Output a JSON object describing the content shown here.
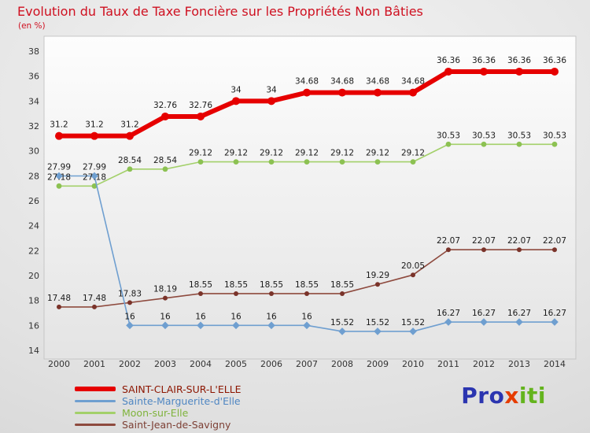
{
  "title": "Evolution du Taux de Taxe Foncière sur les Propriétés Non Bâties",
  "subtitle": "(en %)",
  "chart_data": {
    "type": "line",
    "x": [
      2000,
      2001,
      2002,
      2003,
      2004,
      2005,
      2006,
      2007,
      2008,
      2009,
      2010,
      2011,
      2012,
      2013,
      2014
    ],
    "ylim": [
      14,
      38
    ],
    "ytick_step": 2,
    "grid": false,
    "legend_position": "bottom-left",
    "series": [
      {
        "name": "SAINT-CLAIR-SUR-L'ELLE",
        "color": "#e60000",
        "label_color": "#8c1500",
        "line_width": 6,
        "marker": "circle",
        "marker_size": 5,
        "values": [
          31.2,
          31.2,
          31.2,
          32.76,
          32.76,
          34,
          34,
          34.68,
          34.68,
          34.68,
          34.68,
          36.36,
          36.36,
          36.36,
          36.36
        ]
      },
      {
        "name": "Sainte-Marguerite-d'Elle",
        "color": "#6f9fd0",
        "label_color": "#4f86c2",
        "line_width": 1.6,
        "marker": "diamond",
        "marker_size": 3.4,
        "values": [
          27.99,
          27.99,
          16,
          16,
          16,
          16,
          16,
          16,
          15.52,
          15.52,
          15.52,
          16.27,
          16.27,
          16.27,
          16.27
        ]
      },
      {
        "name": "Moon-sur-Elle",
        "color": "#a3d06a",
        "label_color": "#7fb33c",
        "line_width": 1.6,
        "marker": "circle",
        "marker_size": 3.4,
        "marker_color": "#8cc152",
        "values": [
          27.18,
          27.18,
          28.54,
          28.54,
          29.12,
          29.12,
          29.12,
          29.12,
          29.12,
          29.12,
          29.12,
          30.53,
          30.53,
          30.53,
          30.53
        ]
      },
      {
        "name": "Saint-Jean-de-Savigny",
        "color": "#8e4a3e",
        "label_color": "#7d4035",
        "line_width": 1.6,
        "marker": "circle",
        "marker_size": 3,
        "marker_color": "#7a332a",
        "values": [
          17.48,
          17.48,
          17.83,
          18.19,
          18.55,
          18.55,
          18.55,
          18.55,
          18.55,
          19.29,
          20.05,
          22.07,
          22.07,
          22.07,
          22.07
        ]
      }
    ]
  },
  "logo": {
    "parts": [
      {
        "text": "Pro",
        "color": "#2b35b0"
      },
      {
        "text": "x",
        "color": "#e63c00"
      },
      {
        "text": "iti",
        "color": "#64b41e"
      }
    ]
  }
}
